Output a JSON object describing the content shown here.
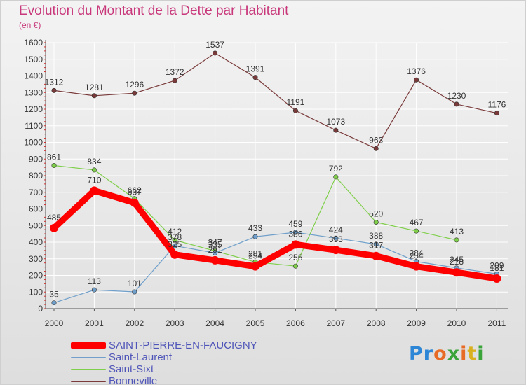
{
  "title": "Evolution du Montant de la Dette par Habitant",
  "subtitle": "(en €)",
  "logo_text": "Proxiti",
  "chart_data": {
    "type": "line",
    "title": "Evolution du Montant de la Dette par Habitant",
    "subtitle": "(en €)",
    "xlabel": "",
    "ylabel": "",
    "x": [
      "2000",
      "2001",
      "2002",
      "2003",
      "2004",
      "2005",
      "2006",
      "2007",
      "2008",
      "2009",
      "2010",
      "2011"
    ],
    "ylim": [
      0,
      1600
    ],
    "yticks": [
      0,
      100,
      200,
      300,
      400,
      500,
      600,
      700,
      800,
      900,
      1000,
      1100,
      1200,
      1300,
      1400,
      1500,
      1600
    ],
    "grid": true,
    "legend_position": "bottom-left",
    "series": [
      {
        "name": "SAINT-PIERRE-EN-FAUCIGNY",
        "color": "#ff0000",
        "values": [
          485,
          710,
          637,
          325,
          291,
          254,
          386,
          353,
          317,
          254,
          218,
          181
        ]
      },
      {
        "name": "Saint-Laurent",
        "color": "#6f9fca",
        "values": [
          35,
          113,
          101,
          378,
          335,
          433,
          459,
          424,
          388,
          284,
          245,
          209
        ]
      },
      {
        "name": "Saint-Sixt",
        "color": "#7fcf4a",
        "values": [
          861,
          834,
          662,
          412,
          347,
          281,
          256,
          792,
          520,
          467,
          413,
          null
        ]
      },
      {
        "name": "Bonneville",
        "color": "#7a3a3a",
        "values": [
          1312,
          1281,
          1296,
          1372,
          1537,
          1391,
          1191,
          1073,
          963,
          1376,
          1230,
          1176
        ]
      }
    ]
  }
}
